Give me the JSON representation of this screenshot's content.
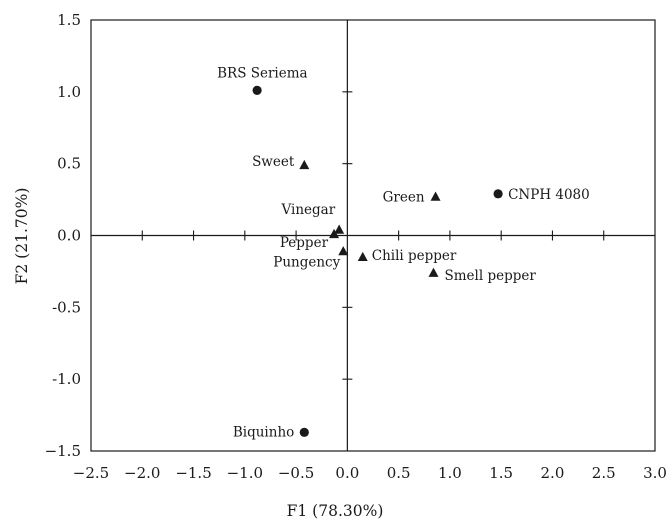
{
  "chart_data": {
    "type": "scatter",
    "xlabel": "F1 (78.30%)",
    "ylabel": "F2 (21.70%)",
    "xlim": [
      -2.5,
      3.0
    ],
    "ylim": [
      -1.5,
      1.5
    ],
    "x_ticks": [
      -2.5,
      -2.0,
      -1.5,
      -1.0,
      -0.5,
      0.0,
      0.5,
      1.0,
      1.5,
      2.0,
      2.5,
      3.0
    ],
    "y_ticks": [
      1.5,
      1.0,
      0.5,
      0.0,
      -0.5,
      -1.0,
      -1.5
    ],
    "x_tick_labels": [
      "−2.5",
      "−2.0",
      "−1.5",
      "−1.0",
      "−0.5",
      "0.0",
      "0.5",
      "1.0",
      "1.5",
      "2.0",
      "2.5",
      "3.0"
    ],
    "y_tick_labels": [
      "1.5",
      "1.0",
      "0.5",
      "0.0",
      "-0.5",
      "-1.0",
      "−1.5"
    ],
    "grid": false,
    "series": [
      {
        "marker": "circle",
        "points": [
          {
            "label": "BRS Seriema",
            "x": -0.88,
            "y": 1.01
          },
          {
            "label": "CNPH 4080",
            "x": 1.47,
            "y": 0.29
          },
          {
            "label": "Biquinho",
            "x": -0.42,
            "y": -1.37
          }
        ]
      },
      {
        "marker": "triangle",
        "points": [
          {
            "label": "Sweet",
            "x": -0.42,
            "y": 0.49
          },
          {
            "label": "Green",
            "x": 0.86,
            "y": 0.27
          },
          {
            "label": "Vinegar",
            "x": -0.08,
            "y": 0.04
          },
          {
            "label": "Pepper",
            "x": -0.13,
            "y": 0.01
          },
          {
            "label": "Pungency",
            "x": -0.04,
            "y": -0.11
          },
          {
            "label": "Chili pepper",
            "x": 0.15,
            "y": -0.15
          },
          {
            "label": "Smell pepper",
            "x": 0.84,
            "y": -0.26
          }
        ]
      }
    ]
  }
}
